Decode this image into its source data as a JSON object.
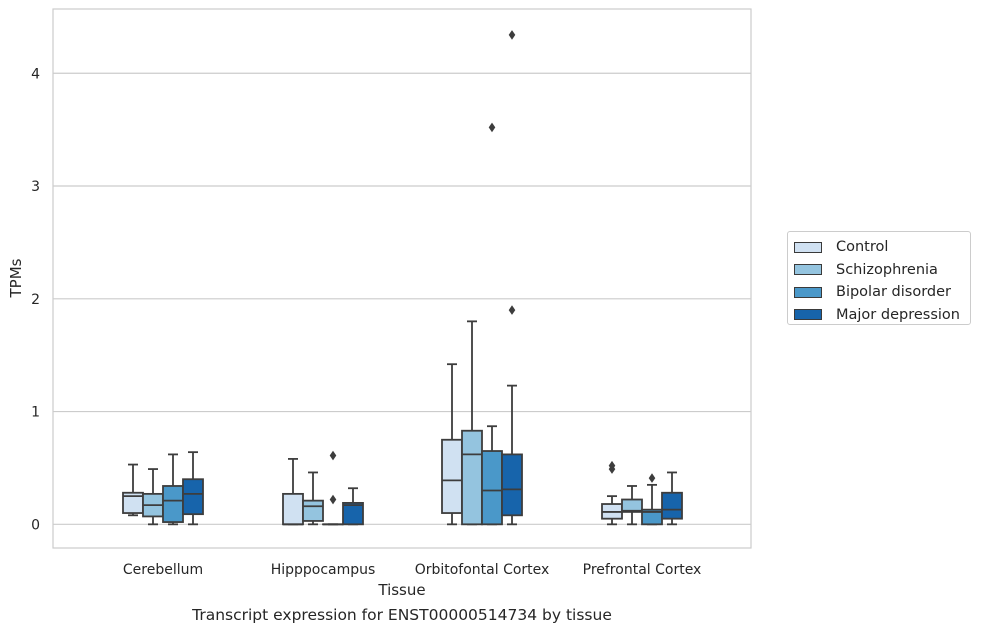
{
  "chart_data": {
    "type": "box",
    "caption": "Transcript expression for ENST00000514734 by tissue",
    "xlabel": "Tissue",
    "ylabel": "TPMs",
    "ylim": [
      -0.21,
      4.57
    ],
    "yticks": [
      0,
      1,
      2,
      3,
      4
    ],
    "grid": true,
    "legend_position": "right",
    "categories": [
      "Cerebellum",
      "Hipppocampus",
      "Orbitofontal Cortex",
      "Prefrontal Cortex"
    ],
    "series": [
      {
        "name": "Control",
        "color": "#d0e1f2",
        "boxes": [
          {
            "whisker_low": 0.08,
            "q1": 0.1,
            "median": 0.25,
            "q3": 0.28,
            "whisker_high": 0.53,
            "outliers": []
          },
          {
            "whisker_low": 0.0,
            "q1": 0.0,
            "median": 0.0,
            "q3": 0.27,
            "whisker_high": 0.58,
            "outliers": []
          },
          {
            "whisker_low": 0.0,
            "q1": 0.1,
            "median": 0.39,
            "q3": 0.75,
            "whisker_high": 1.42,
            "outliers": []
          },
          {
            "whisker_low": 0.0,
            "q1": 0.05,
            "median": 0.11,
            "q3": 0.18,
            "whisker_high": 0.25,
            "outliers": [
              0.49,
              0.52
            ]
          }
        ]
      },
      {
        "name": "Schizophrenia",
        "color": "#94c4df",
        "boxes": [
          {
            "whisker_low": 0.0,
            "q1": 0.07,
            "median": 0.17,
            "q3": 0.27,
            "whisker_high": 0.49,
            "outliers": []
          },
          {
            "whisker_low": 0.0,
            "q1": 0.03,
            "median": 0.16,
            "q3": 0.21,
            "whisker_high": 0.46,
            "outliers": []
          },
          {
            "whisker_low": 0.0,
            "q1": 0.0,
            "median": 0.62,
            "q3": 0.83,
            "whisker_high": 1.8,
            "outliers": []
          },
          {
            "whisker_low": 0.0,
            "q1": 0.11,
            "median": 0.12,
            "q3": 0.22,
            "whisker_high": 0.34,
            "outliers": []
          }
        ]
      },
      {
        "name": "Bipolar disorder",
        "color": "#4a98c9",
        "boxes": [
          {
            "whisker_low": 0.0,
            "q1": 0.02,
            "median": 0.21,
            "q3": 0.34,
            "whisker_high": 0.62,
            "outliers": []
          },
          {
            "whisker_low": 0.0,
            "q1": 0.0,
            "median": 0.0,
            "q3": 0.0,
            "whisker_high": 0.0,
            "outliers": [
              0.22,
              0.61
            ]
          },
          {
            "whisker_low": 0.0,
            "q1": 0.0,
            "median": 0.3,
            "q3": 0.65,
            "whisker_high": 0.87,
            "outliers": [
              3.52
            ]
          },
          {
            "whisker_low": 0.0,
            "q1": 0.0,
            "median": 0.11,
            "q3": 0.13,
            "whisker_high": 0.35,
            "outliers": [
              0.41
            ]
          }
        ]
      },
      {
        "name": "Major depression",
        "color": "#1764ab",
        "boxes": [
          {
            "whisker_low": 0.0,
            "q1": 0.09,
            "median": 0.27,
            "q3": 0.4,
            "whisker_high": 0.64,
            "outliers": []
          },
          {
            "whisker_low": 0.0,
            "q1": 0.0,
            "median": 0.17,
            "q3": 0.19,
            "whisker_high": 0.32,
            "outliers": []
          },
          {
            "whisker_low": 0.0,
            "q1": 0.08,
            "median": 0.31,
            "q3": 0.62,
            "whisker_high": 1.23,
            "outliers": [
              1.9,
              4.34
            ]
          },
          {
            "whisker_low": 0.0,
            "q1": 0.05,
            "median": 0.13,
            "q3": 0.28,
            "whisker_high": 0.46,
            "outliers": []
          }
        ]
      }
    ]
  }
}
